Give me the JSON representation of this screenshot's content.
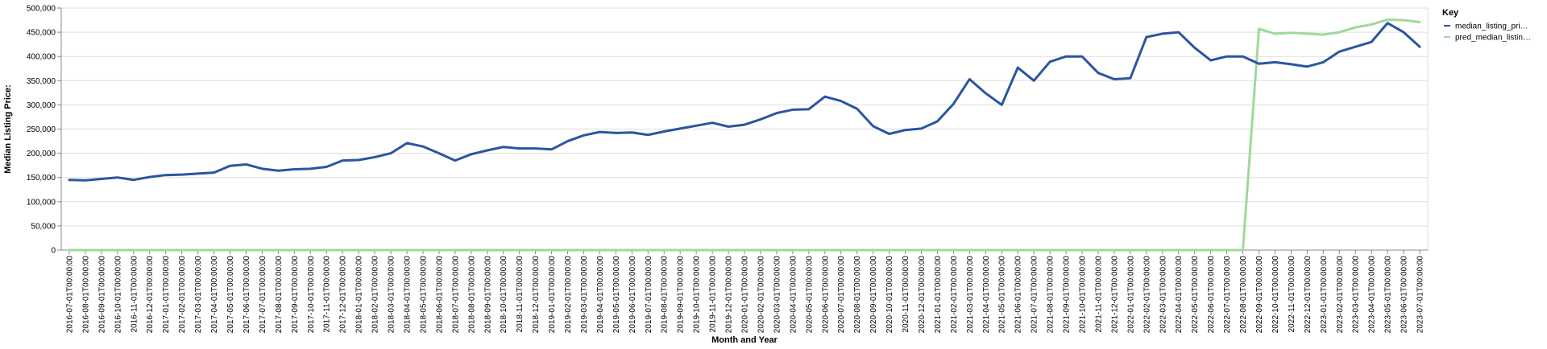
{
  "chart_data": {
    "type": "line",
    "xlabel": "Month and Year",
    "ylabel": "Median Listing Price:",
    "ylim": [
      0,
      500000
    ],
    "yticks": [
      0,
      50000,
      100000,
      150000,
      200000,
      250000,
      300000,
      350000,
      400000,
      450000,
      500000
    ],
    "ytick_labels": [
      "0",
      "50,000",
      "100,000",
      "150,000",
      "200,000",
      "250,000",
      "300,000",
      "350,000",
      "400,000",
      "450,000",
      "500,000"
    ],
    "grid": true,
    "legend": {
      "title": "Key",
      "placement": "right",
      "entries": [
        {
          "label": "median_listing_pri…",
          "color": "#2a56a0"
        },
        {
          "label": "pred_median_listin…",
          "color": "#9ed99a"
        }
      ]
    },
    "x": [
      "2016-07-01T00:00:00",
      "2016-08-01T00:00:00",
      "2016-09-01T00:00:00",
      "2016-10-01T00:00:00",
      "2016-11-01T00:00:00",
      "2016-12-01T00:00:00",
      "2017-01-01T00:00:00",
      "2017-02-01T00:00:00",
      "2017-03-01T00:00:00",
      "2017-04-01T00:00:00",
      "2017-05-01T00:00:00",
      "2017-06-01T00:00:00",
      "2017-07-01T00:00:00",
      "2017-08-01T00:00:00",
      "2017-09-01T00:00:00",
      "2017-10-01T00:00:00",
      "2017-11-01T00:00:00",
      "2017-12-01T00:00:00",
      "2018-01-01T00:00:00",
      "2018-02-01T00:00:00",
      "2018-03-01T00:00:00",
      "2018-04-01T00:00:00",
      "2018-05-01T00:00:00",
      "2018-06-01T00:00:00",
      "2018-07-01T00:00:00",
      "2018-08-01T00:00:00",
      "2018-09-01T00:00:00",
      "2018-10-01T00:00:00",
      "2018-11-01T00:00:00",
      "2018-12-01T00:00:00",
      "2019-01-01T00:00:00",
      "2019-02-01T00:00:00",
      "2019-03-01T00:00:00",
      "2019-04-01T00:00:00",
      "2019-05-01T00:00:00",
      "2019-06-01T00:00:00",
      "2019-07-01T00:00:00",
      "2019-08-01T00:00:00",
      "2019-09-01T00:00:00",
      "2019-10-01T00:00:00",
      "2019-11-01T00:00:00",
      "2019-12-01T00:00:00",
      "2020-01-01T00:00:00",
      "2020-02-01T00:00:00",
      "2020-03-01T00:00:00",
      "2020-04-01T00:00:00",
      "2020-05-01T00:00:00",
      "2020-06-01T00:00:00",
      "2020-07-01T00:00:00",
      "2020-08-01T00:00:00",
      "2020-09-01T00:00:00",
      "2020-10-01T00:00:00",
      "2020-11-01T00:00:00",
      "2020-12-01T00:00:00",
      "2021-01-01T00:00:00",
      "2021-02-01T00:00:00",
      "2021-03-01T00:00:00",
      "2021-04-01T00:00:00",
      "2021-05-01T00:00:00",
      "2021-06-01T00:00:00",
      "2021-07-01T00:00:00",
      "2021-08-01T00:00:00",
      "2021-09-01T00:00:00",
      "2021-10-01T00:00:00",
      "2021-11-01T00:00:00",
      "2021-12-01T00:00:00",
      "2022-01-01T00:00:00",
      "2022-02-01T00:00:00",
      "2022-03-01T00:00:00",
      "2022-04-01T00:00:00",
      "2022-05-01T00:00:00",
      "2022-06-01T00:00:00",
      "2022-07-01T00:00:00",
      "2022-08-01T00:00:00",
      "2022-09-01T00:00:00",
      "2022-10-01T00:00:00",
      "2022-11-01T00:00:00",
      "2022-12-01T00:00:00",
      "2023-01-01T00:00:00",
      "2023-02-01T00:00:00",
      "2023-03-01T00:00:00",
      "2023-04-01T00:00:00",
      "2023-05-01T00:00:00",
      "2023-06-01T00:00:00",
      "2023-07-01T00:00:00"
    ],
    "series": [
      {
        "name": "median_listing_pri…",
        "color": "#2a56a0",
        "values": [
          145000,
          144000,
          147000,
          150000,
          145000,
          151000,
          155000,
          156000,
          158000,
          160000,
          174000,
          177000,
          168000,
          164000,
          167000,
          168000,
          172000,
          185000,
          186000,
          192000,
          200000,
          221000,
          214000,
          200000,
          185000,
          198000,
          206000,
          213000,
          210000,
          210000,
          208000,
          225000,
          237000,
          244000,
          242000,
          243000,
          238000,
          245000,
          251000,
          257000,
          263000,
          255000,
          259000,
          270000,
          283000,
          290000,
          291000,
          317000,
          308000,
          292000,
          256000,
          240000,
          248000,
          251000,
          266000,
          302000,
          353000,
          324000,
          300000,
          377000,
          350000,
          389000,
          400000,
          400000,
          366000,
          353000,
          355000,
          440000,
          447000,
          450000,
          418000,
          392000,
          400000,
          400000,
          385000,
          388000,
          384000,
          379000,
          388000,
          410000,
          420000,
          430000,
          469000,
          450000,
          420000
        ]
      },
      {
        "name": "pred_median_listin…",
        "color": "#9ed99a",
        "values": [
          0,
          0,
          0,
          0,
          0,
          0,
          0,
          0,
          0,
          0,
          0,
          0,
          0,
          0,
          0,
          0,
          0,
          0,
          0,
          0,
          0,
          0,
          0,
          0,
          0,
          0,
          0,
          0,
          0,
          0,
          0,
          0,
          0,
          0,
          0,
          0,
          0,
          0,
          0,
          0,
          0,
          0,
          0,
          0,
          0,
          0,
          0,
          0,
          0,
          0,
          0,
          0,
          0,
          0,
          0,
          0,
          0,
          0,
          0,
          0,
          0,
          0,
          0,
          0,
          0,
          0,
          0,
          0,
          0,
          0,
          0,
          0,
          0,
          0,
          457000,
          447000,
          449000,
          447000,
          445000,
          450000,
          460000,
          466000,
          476000,
          475000,
          471000
        ]
      }
    ]
  }
}
